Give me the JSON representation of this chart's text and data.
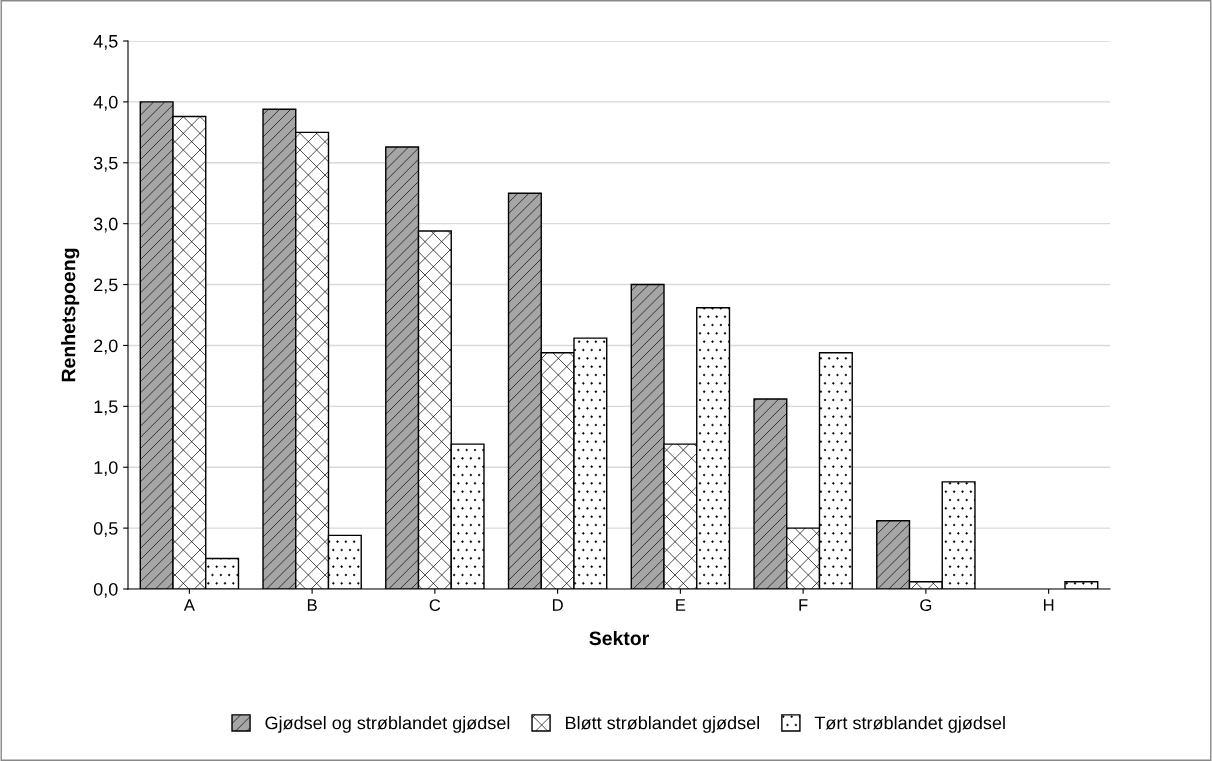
{
  "chart_data": {
    "type": "bar",
    "xlabel": "Sektor",
    "ylabel": "Renhetspoeng",
    "categories": [
      "A",
      "B",
      "C",
      "D",
      "E",
      "F",
      "G",
      "H"
    ],
    "series": [
      {
        "name": "Gjødsel og strøblandet gjødsel",
        "color": "#a6a6a6",
        "values": [
          4.0,
          3.94,
          3.63,
          3.25,
          2.5,
          1.56,
          0.56,
          null
        ]
      },
      {
        "name": "Bløtt strøblandet gjødsel",
        "color": "#ffffff",
        "values": [
          3.88,
          3.75,
          2.94,
          1.94,
          1.19,
          0.5,
          0.06,
          null
        ]
      },
      {
        "name": "Tørt strøblandet gjødsel",
        "color": "#ffffff",
        "values": [
          0.25,
          0.44,
          1.19,
          2.06,
          2.31,
          1.94,
          0.88,
          0.06
        ]
      }
    ],
    "ylim": [
      0,
      4.5
    ],
    "yticks": [
      {
        "value": 0,
        "label": "0,0"
      },
      {
        "value": 0.5,
        "label": "0,5"
      },
      {
        "value": 1,
        "label": "1,0"
      },
      {
        "value": 1.5,
        "label": "1,5"
      },
      {
        "value": 2,
        "label": "2,0"
      },
      {
        "value": 2.5,
        "label": "2,5"
      },
      {
        "value": 3,
        "label": "3,0"
      },
      {
        "value": 3.5,
        "label": "3,5"
      },
      {
        "value": 4,
        "label": "4,0"
      },
      {
        "value": 4.5,
        "label": "4,5"
      }
    ],
    "grid": "y",
    "legend": "bottom"
  }
}
